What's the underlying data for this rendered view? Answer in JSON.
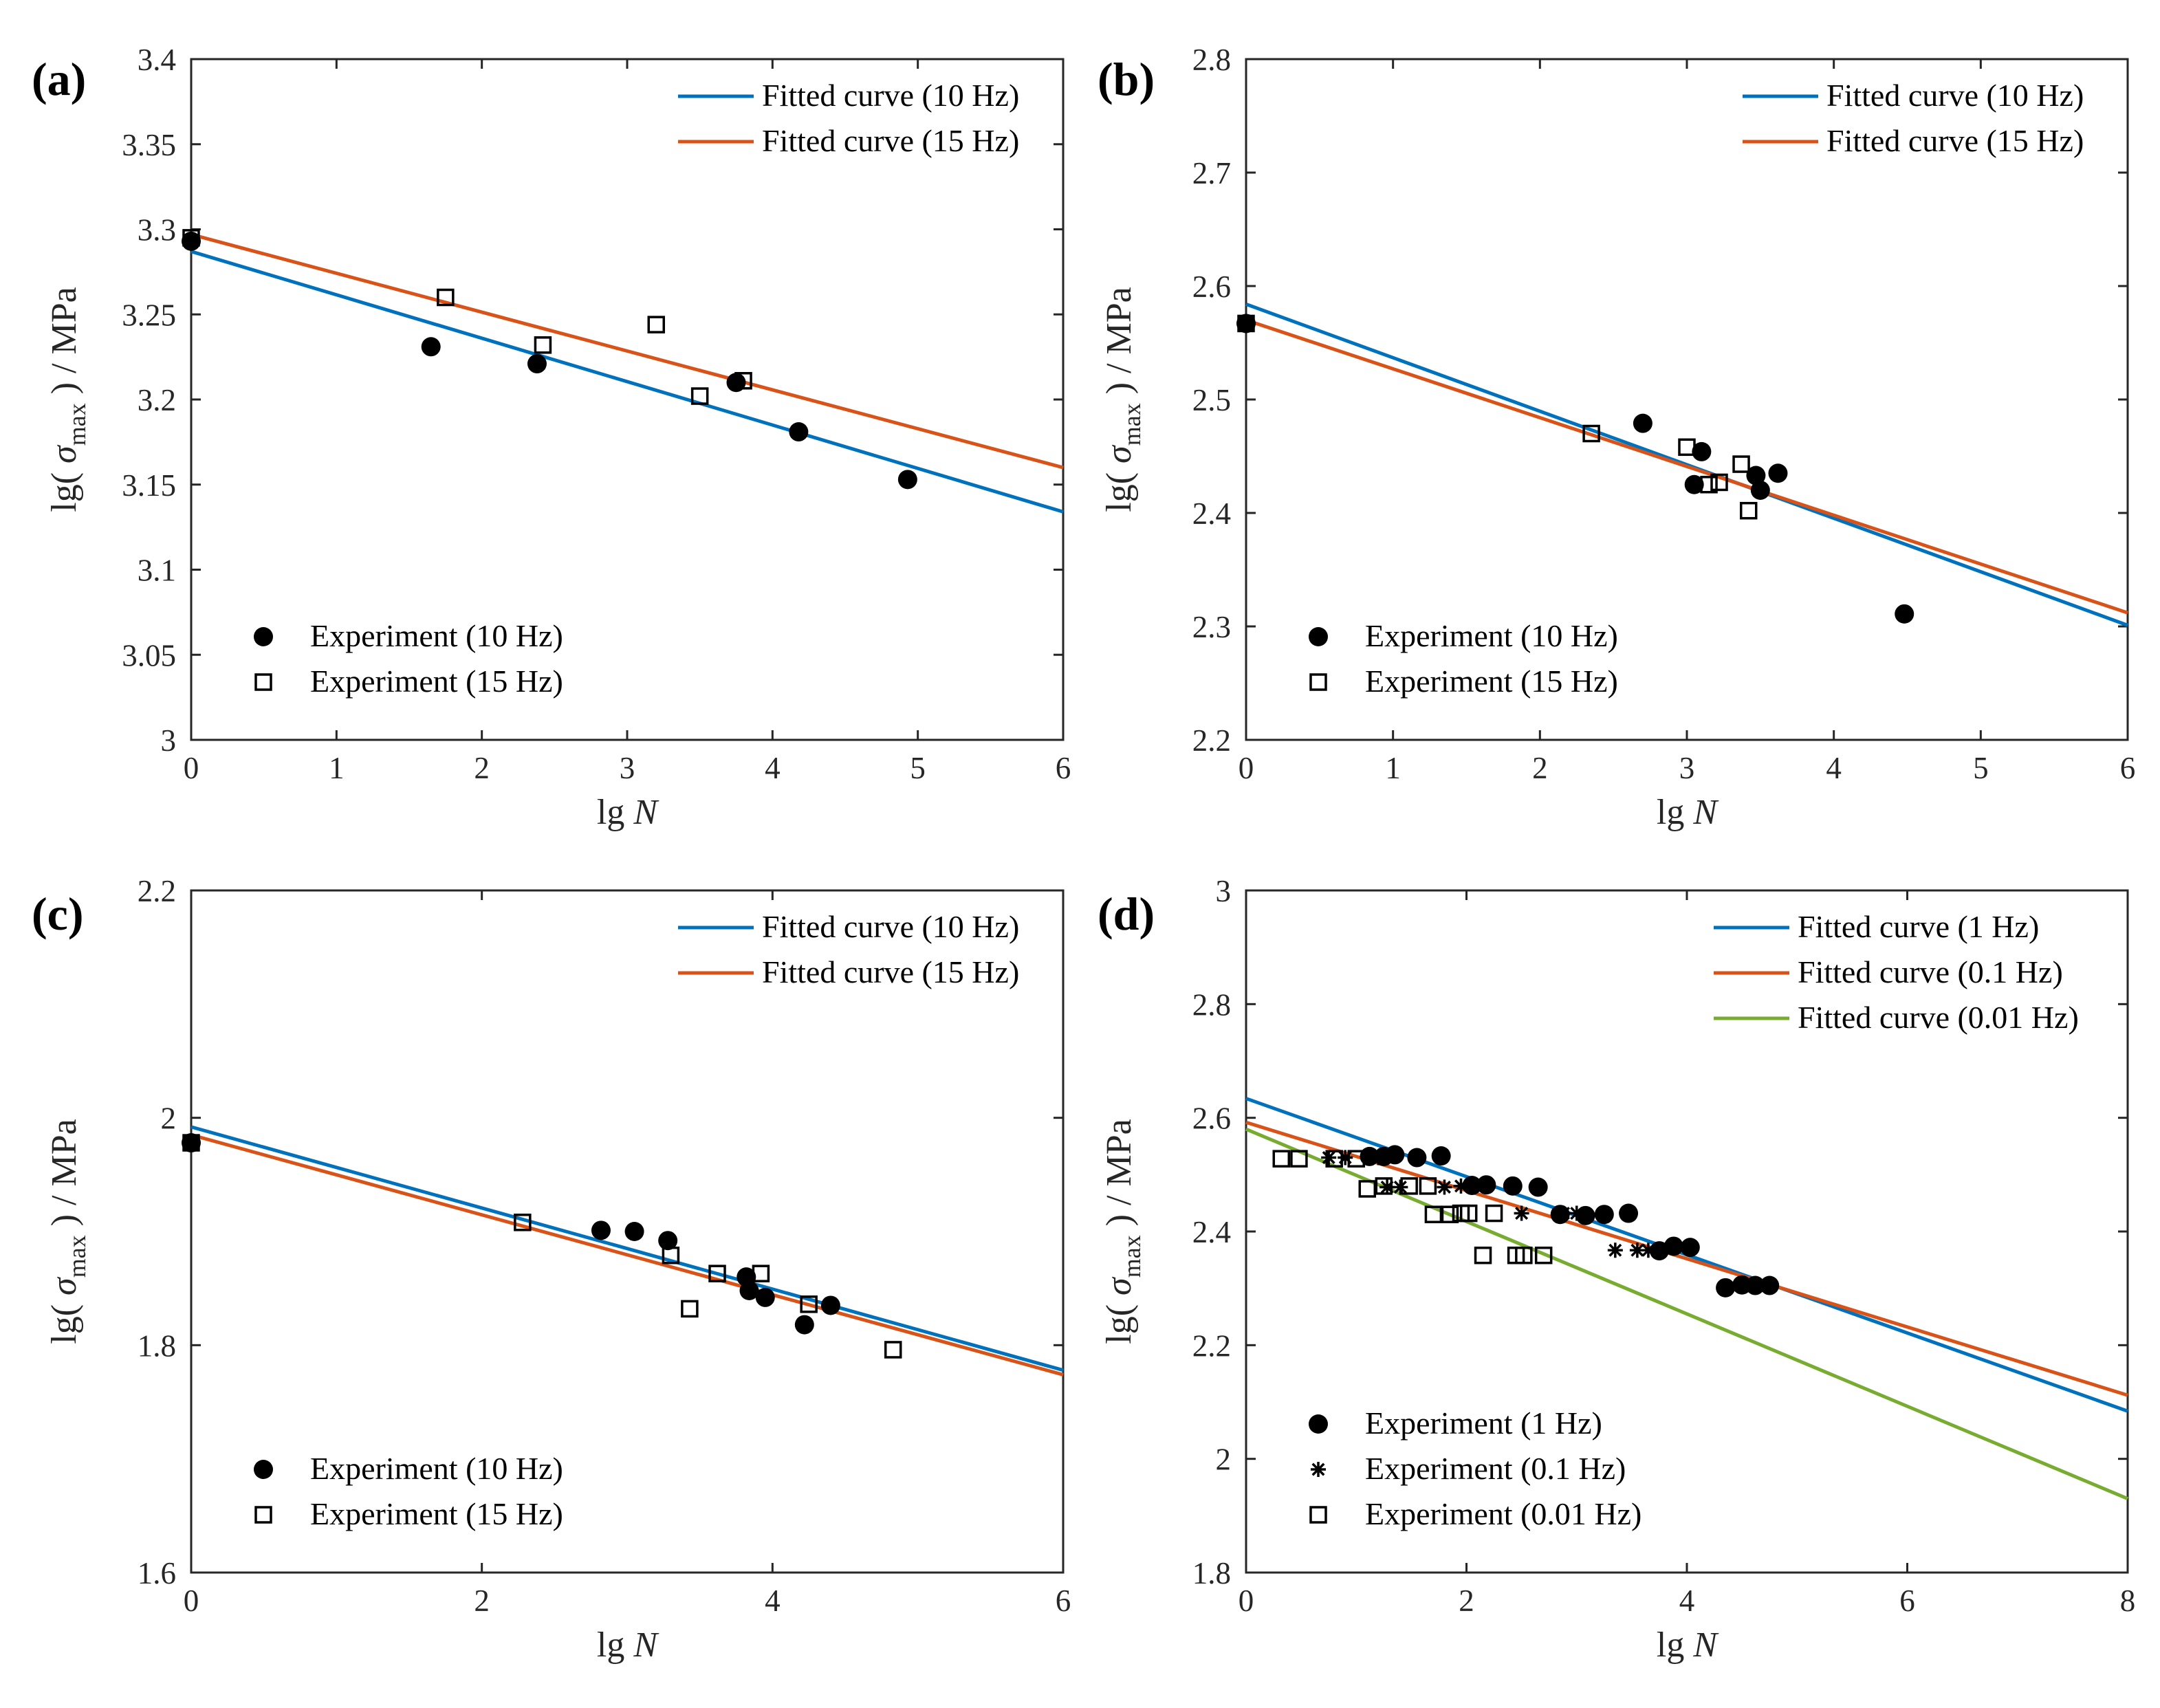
{
  "colors": {
    "blue": "#0072BD",
    "orange": "#D95319",
    "green": "#77AC30",
    "axis": "#262626",
    "marker": "#000000"
  },
  "chart_data": [
    {
      "panel": "(a)",
      "type": "scatter",
      "xlabel": {
        "prefix": "lg ",
        "var": "N"
      },
      "ylabel": {
        "pre": "lg( ",
        "sym": "σ",
        "sub": "max",
        "post": " ) / MPa"
      },
      "xlim": [
        0,
        6
      ],
      "ylim": [
        3,
        3.4
      ],
      "xticks": [
        "0",
        "1",
        "2",
        "3",
        "4",
        "5",
        "6"
      ],
      "yticks": [
        "3",
        "3.05",
        "3.1",
        "3.15",
        "3.2",
        "3.25",
        "3.3",
        "3.35",
        "3.4"
      ],
      "fitted_lines": [
        {
          "name": "Fitted curve (10 Hz)",
          "color": "blue",
          "x": [
            0,
            6
          ],
          "y": [
            3.287,
            3.134
          ]
        },
        {
          "name": "Fitted curve (15 Hz)",
          "color": "orange",
          "x": [
            0,
            6
          ],
          "y": [
            3.297,
            3.16
          ]
        }
      ],
      "scatter_series": [
        {
          "name": "Experiment (10 Hz)",
          "marker": "circle",
          "points": [
            [
              0,
              3.293
            ],
            [
              1.65,
              3.231
            ],
            [
              2.38,
              3.221
            ],
            [
              3.75,
              3.21
            ],
            [
              4.18,
              3.181
            ],
            [
              4.93,
              3.153
            ]
          ]
        },
        {
          "name": "Experiment (15 Hz)",
          "marker": "square",
          "points": [
            [
              0,
              3.295
            ],
            [
              1.75,
              3.26
            ],
            [
              2.42,
              3.232
            ],
            [
              3.2,
              3.244
            ],
            [
              3.5,
              3.202
            ],
            [
              3.8,
              3.211
            ]
          ]
        }
      ],
      "legend_fit_position": "top-right",
      "legend_exp_position": "bottom-left"
    },
    {
      "panel": "(b)",
      "type": "scatter",
      "xlabel": {
        "prefix": "lg ",
        "var": "N"
      },
      "ylabel": {
        "pre": "lg( ",
        "sym": "σ",
        "sub": "max",
        "post": " ) / MPa"
      },
      "xlim": [
        0,
        6
      ],
      "ylim": [
        2.2,
        2.8
      ],
      "xticks": [
        "0",
        "1",
        "2",
        "3",
        "4",
        "5",
        "6"
      ],
      "yticks": [
        "2.2",
        "2.3",
        "2.4",
        "2.5",
        "2.6",
        "2.7",
        "2.8"
      ],
      "fitted_lines": [
        {
          "name": "Fitted curve (10 Hz)",
          "color": "blue",
          "x": [
            0,
            6
          ],
          "y": [
            2.584,
            2.301
          ]
        },
        {
          "name": "Fitted curve (15 Hz)",
          "color": "orange",
          "x": [
            0,
            6
          ],
          "y": [
            2.57,
            2.312
          ]
        }
      ],
      "scatter_series": [
        {
          "name": "Experiment (10 Hz)",
          "marker": "circle",
          "points": [
            [
              0,
              2.567
            ],
            [
              2.7,
              2.479
            ],
            [
              3.1,
              2.454
            ],
            [
              3.05,
              2.425
            ],
            [
              3.47,
              2.433
            ],
            [
              3.5,
              2.42
            ],
            [
              3.62,
              2.435
            ],
            [
              4.48,
              2.311
            ]
          ]
        },
        {
          "name": "Experiment (15 Hz)",
          "marker": "square",
          "points": [
            [
              0,
              2.567
            ],
            [
              2.35,
              2.47
            ],
            [
              3.0,
              2.458
            ],
            [
              3.15,
              2.425
            ],
            [
              3.22,
              2.427
            ],
            [
              3.37,
              2.443
            ],
            [
              3.42,
              2.402
            ]
          ]
        }
      ],
      "legend_fit_position": "top-right",
      "legend_exp_position": "bottom-left"
    },
    {
      "panel": "(c)",
      "type": "scatter",
      "xlabel": {
        "prefix": "lg ",
        "var": "N"
      },
      "ylabel": {
        "pre": "lg( ",
        "sym": "σ",
        "sub": "max",
        "post": " ) / MPa"
      },
      "xlim": [
        0,
        6
      ],
      "ylim": [
        1.6,
        2.2
      ],
      "xticks": [
        "0",
        "2",
        "4",
        "6"
      ],
      "xtick_values": [
        0,
        2,
        4,
        6
      ],
      "yticks": [
        "1.6",
        "1.8",
        "2",
        "2.2"
      ],
      "fitted_lines": [
        {
          "name": "Fitted curve (10 Hz)",
          "color": "blue",
          "x": [
            0,
            6
          ],
          "y": [
            1.992,
            1.778
          ]
        },
        {
          "name": "Fitted curve (15 Hz)",
          "color": "orange",
          "x": [
            0,
            6
          ],
          "y": [
            1.985,
            1.774
          ]
        }
      ],
      "scatter_series": [
        {
          "name": "Experiment (10 Hz)",
          "marker": "circle",
          "points": [
            [
              0,
              1.978
            ],
            [
              2.82,
              1.901
            ],
            [
              3.05,
              1.9
            ],
            [
              3.28,
              1.892
            ],
            [
              3.82,
              1.86
            ],
            [
              3.84,
              1.848
            ],
            [
              3.95,
              1.842
            ],
            [
              4.22,
              1.818
            ],
            [
              4.4,
              1.835
            ]
          ]
        },
        {
          "name": "Experiment (15 Hz)",
          "marker": "square",
          "points": [
            [
              0,
              1.978
            ],
            [
              2.28,
              1.908
            ],
            [
              3.3,
              1.879
            ],
            [
              3.43,
              1.832
            ],
            [
              3.62,
              1.863
            ],
            [
              3.92,
              1.863
            ],
            [
              4.25,
              1.836
            ],
            [
              4.83,
              1.796
            ]
          ]
        }
      ],
      "legend_fit_position": "top-right",
      "legend_exp_position": "bottom-left"
    },
    {
      "panel": "(d)",
      "type": "scatter",
      "xlabel": {
        "prefix": "lg ",
        "var": "N"
      },
      "ylabel": {
        "pre": "lg( ",
        "sym": "σ",
        "sub": "max",
        "post": " ) / MPa"
      },
      "xlim": [
        0,
        8
      ],
      "ylim": [
        1.8,
        3
      ],
      "xticks": [
        "0",
        "2",
        "4",
        "6",
        "8"
      ],
      "xtick_values": [
        0,
        2,
        4,
        6,
        8
      ],
      "yticks": [
        "1.8",
        "2",
        "2.2",
        "2.4",
        "2.6",
        "2.8",
        "3"
      ],
      "fitted_lines": [
        {
          "name": "Fitted curve (1 Hz)",
          "color": "blue",
          "x": [
            0,
            8
          ],
          "y": [
            2.634,
            2.084
          ]
        },
        {
          "name": "Fitted curve (0.1 Hz)",
          "color": "orange",
          "x": [
            0,
            8
          ],
          "y": [
            2.592,
            2.112
          ]
        },
        {
          "name": "Fitted curve (0.01 Hz)",
          "color": "green",
          "x": [
            0,
            8
          ],
          "y": [
            2.58,
            1.93
          ]
        }
      ],
      "scatter_series": [
        {
          "name": "Experiment (1 Hz)",
          "marker": "circle",
          "points": [
            [
              1.12,
              2.532
            ],
            [
              1.25,
              2.532
            ],
            [
              1.35,
              2.535
            ],
            [
              1.55,
              2.53
            ],
            [
              1.77,
              2.533
            ],
            [
              2.05,
              2.481
            ],
            [
              2.18,
              2.482
            ],
            [
              2.42,
              2.48
            ],
            [
              2.65,
              2.478
            ],
            [
              2.85,
              2.43
            ],
            [
              3.08,
              2.428
            ],
            [
              3.25,
              2.43
            ],
            [
              3.47,
              2.432
            ],
            [
              3.75,
              2.366
            ],
            [
              3.88,
              2.374
            ],
            [
              4.03,
              2.372
            ],
            [
              4.35,
              2.301
            ],
            [
              4.5,
              2.306
            ],
            [
              4.62,
              2.305
            ],
            [
              4.75,
              2.305
            ]
          ]
        },
        {
          "name": "Experiment (0.1 Hz)",
          "marker": "star",
          "points": [
            [
              0.75,
              2.53
            ],
            [
              0.9,
              2.53
            ],
            [
              1.2,
              2.53
            ],
            [
              1.28,
              2.478
            ],
            [
              1.4,
              2.478
            ],
            [
              1.8,
              2.478
            ],
            [
              1.95,
              2.48
            ],
            [
              2.5,
              2.432
            ],
            [
              2.88,
              2.432
            ],
            [
              3.0,
              2.432
            ],
            [
              3.35,
              2.367
            ],
            [
              3.55,
              2.367
            ],
            [
              3.65,
              2.367
            ]
          ]
        },
        {
          "name": "Experiment (0.01 Hz)",
          "marker": "square",
          "points": [
            [
              0.32,
              2.528
            ],
            [
              0.48,
              2.528
            ],
            [
              0.8,
              2.528
            ],
            [
              1.0,
              2.528
            ],
            [
              1.1,
              2.475
            ],
            [
              1.25,
              2.48
            ],
            [
              1.48,
              2.48
            ],
            [
              1.65,
              2.48
            ],
            [
              1.7,
              2.43
            ],
            [
              1.85,
              2.43
            ],
            [
              1.95,
              2.432
            ],
            [
              2.02,
              2.432
            ],
            [
              2.25,
              2.432
            ],
            [
              2.15,
              2.358
            ],
            [
              2.45,
              2.358
            ],
            [
              2.52,
              2.358
            ],
            [
              2.7,
              2.358
            ]
          ]
        }
      ],
      "legend_fit_position": "top-right",
      "legend_exp_position": "bottom-left"
    }
  ]
}
